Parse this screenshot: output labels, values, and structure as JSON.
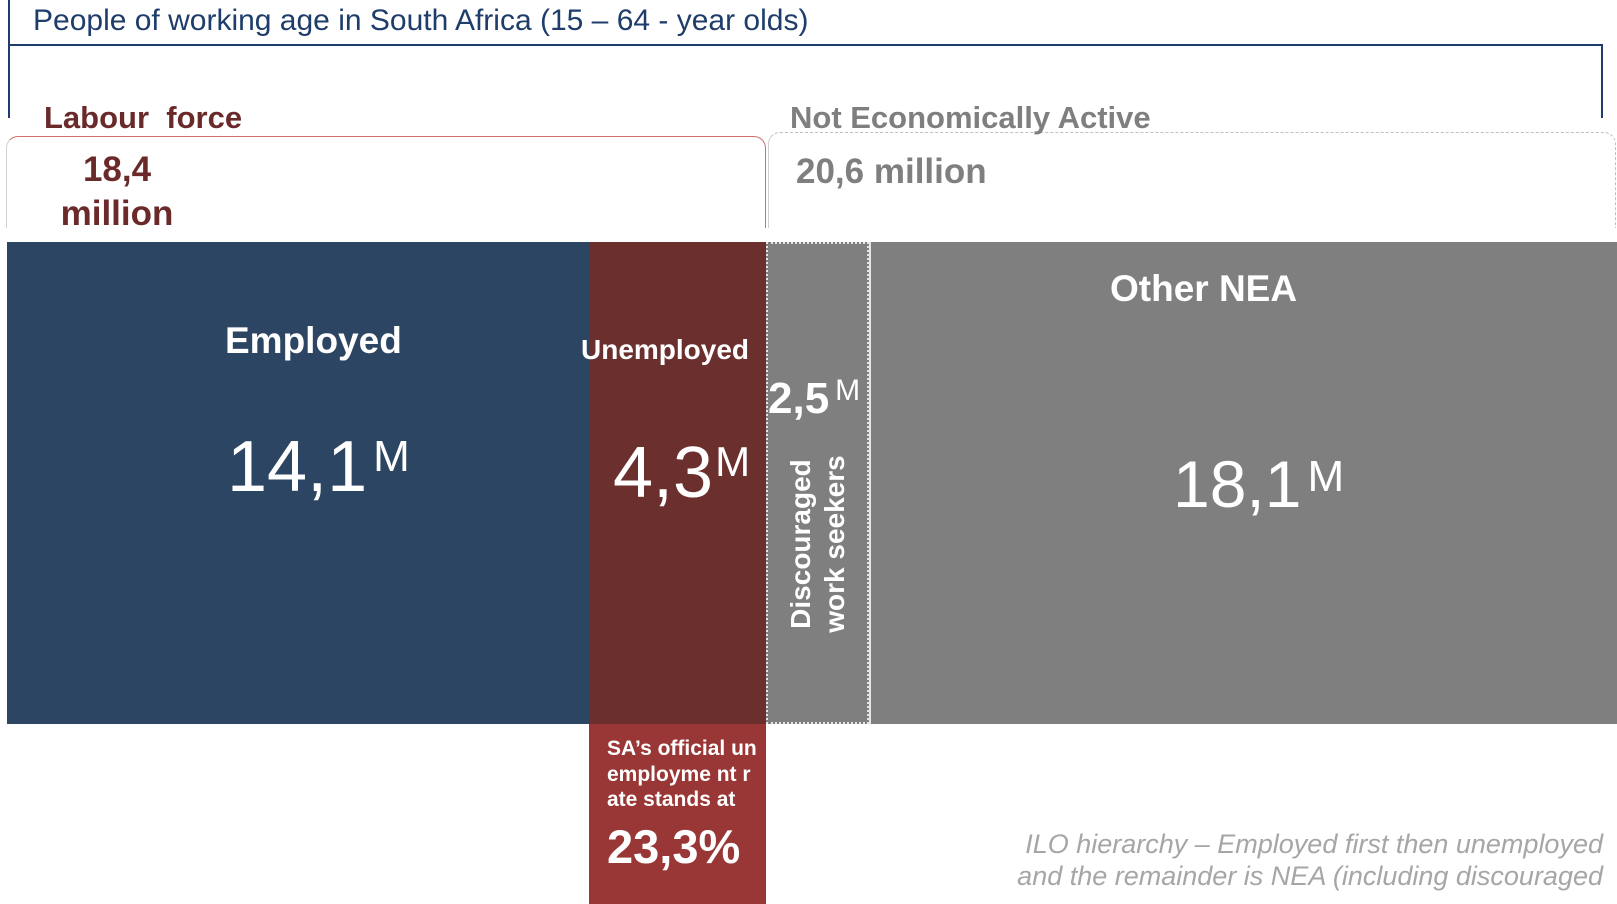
{
  "header": {
    "title": "People of working age in South Africa (15 – 64 - year olds)"
  },
  "labour_force": {
    "title": "Labour  force",
    "value_line1": "18,4",
    "value_line2": "million"
  },
  "not_economically_active": {
    "title": "Not Economically Active",
    "value": "20,6 million"
  },
  "blocks": {
    "employed": {
      "label": "Employed",
      "value": "14,1",
      "unit": "M",
      "color": "#2c4562"
    },
    "unemployed": {
      "label": "Unemployed",
      "value": "4,3",
      "unit": "M",
      "color": "#6b2f2e"
    },
    "discouraged": {
      "label_line1": "Discouraged",
      "label_line2": "work seekers",
      "value": "2,5",
      "unit": "M",
      "color": "#7f7f7f"
    },
    "other_nea": {
      "label": "Other NEA",
      "value": "18,1",
      "unit": "M",
      "color": "#7f7f7f"
    }
  },
  "rate_box": {
    "text": "SA’s official unemployme nt rate stands at",
    "value": "23,3%",
    "color": "#983735"
  },
  "note": {
    "line1": "ILO hierarchy – Employed first then unemployed",
    "line2": "and the remainder is NEA (including discouraged"
  }
}
